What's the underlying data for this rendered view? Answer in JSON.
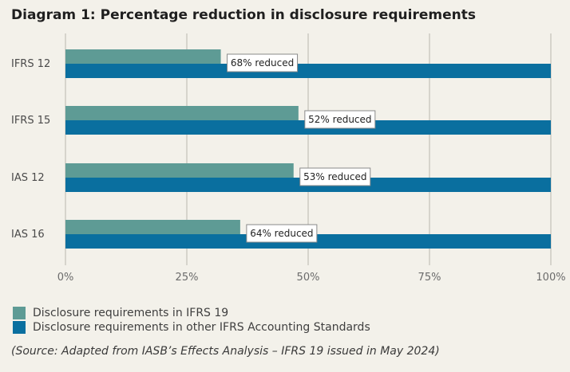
{
  "chart_data": {
    "type": "bar",
    "orientation": "horizontal",
    "title": "Diagram 1: Percentage reduction in disclosure requirements",
    "categories": [
      "IFRS 12",
      "IFRS 15",
      "IAS 12",
      "IAS 16"
    ],
    "series": [
      {
        "name": "Disclosure requirements in IFRS 19",
        "values": [
          32,
          48,
          47,
          36
        ],
        "color": "#5e9b95"
      },
      {
        "name": "Disclosure requirements in other IFRS Accounting Standards",
        "values": [
          100,
          100,
          100,
          100
        ],
        "color": "#0a6f9f"
      }
    ],
    "annotations": [
      "68% reduced",
      "52% reduced",
      "53% reduced",
      "64% reduced"
    ],
    "xlim": [
      0,
      100
    ],
    "x_ticks": [
      "0%",
      "25%",
      "50%",
      "75%",
      "100%"
    ],
    "grid": "vertical",
    "legend_placement": "bottom-left"
  },
  "source": "(Source: Adapted from IASB’s Effects Analysis – IFRS 19 issued in May 2024)"
}
